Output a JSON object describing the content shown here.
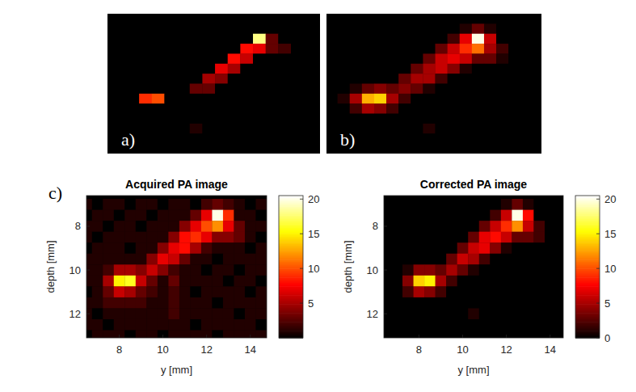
{
  "chart_data": [
    {
      "type": "heatmap",
      "title": "a)",
      "tick_labels": false,
      "color": "hot",
      "xlim": [
        6.5,
        14.9
      ],
      "ylim": [
        6.25,
        13.25
      ],
      "color_range": [
        0,
        20.5
      ],
      "x": [
        6.5,
        7.0,
        7.5,
        8.0,
        8.5,
        9.0,
        9.5,
        10.0,
        10.5,
        11.0,
        11.5,
        12.0,
        12.5,
        13.0,
        13.5,
        14.0,
        14.5
      ],
      "y": [
        7.0,
        7.5,
        8.0,
        8.5,
        9.0,
        9.5,
        10.0,
        10.5,
        11.0,
        11.5,
        12.0,
        12.5,
        13.0
      ],
      "z": [
        [
          0,
          0,
          0,
          0,
          0,
          0,
          0,
          0,
          0,
          0,
          0,
          0,
          0,
          0,
          0,
          0,
          0
        ],
        [
          0,
          0,
          0,
          0,
          0,
          0,
          0,
          0,
          0,
          0,
          0,
          0,
          18,
          3,
          0,
          0,
          0
        ],
        [
          0,
          0,
          0,
          0,
          0,
          0,
          0,
          0,
          0,
          0,
          0,
          8,
          7,
          3,
          2,
          0,
          0
        ],
        [
          0,
          0,
          0,
          0,
          0,
          0,
          0,
          0,
          0,
          0,
          8,
          6,
          0,
          0,
          0,
          0,
          0
        ],
        [
          0,
          0,
          0,
          0,
          0,
          0,
          0,
          0,
          0,
          7,
          5,
          0,
          0,
          0,
          0,
          0,
          0
        ],
        [
          0,
          0,
          0,
          0,
          0,
          0,
          0,
          0,
          5,
          4,
          0,
          0,
          0,
          0,
          0,
          0,
          0
        ],
        [
          0,
          0,
          0,
          0,
          0,
          0,
          0,
          3,
          3,
          0,
          0,
          0,
          0,
          0,
          0,
          0,
          0
        ],
        [
          0,
          0,
          0,
          9,
          10,
          0,
          0,
          0,
          0,
          0,
          0,
          0,
          0,
          0,
          0,
          0,
          0
        ],
        [
          0,
          0,
          0,
          0,
          0,
          0,
          0,
          0,
          0,
          0,
          0,
          0,
          0,
          0,
          0,
          0,
          0
        ],
        [
          0,
          0,
          0,
          0,
          0,
          0,
          0,
          0,
          0,
          0,
          0,
          0,
          0,
          0,
          0,
          0,
          0
        ],
        [
          0,
          0,
          0,
          0,
          0,
          0,
          0,
          1,
          0,
          0,
          0,
          0,
          0,
          0,
          0,
          0,
          0
        ],
        [
          0,
          0,
          0,
          0,
          0,
          0,
          0,
          0,
          0,
          0,
          0,
          0,
          0,
          0,
          0,
          0,
          0
        ],
        [
          0,
          0,
          0,
          0,
          0,
          0,
          0,
          0,
          0,
          0,
          0,
          0,
          0,
          0,
          0,
          0,
          0
        ]
      ]
    },
    {
      "type": "heatmap",
      "title": "b)",
      "tick_labels": false,
      "color": "hot",
      "xlim": [
        6.3,
        15.1
      ],
      "ylim": [
        6.25,
        13.25
      ],
      "color_range": [
        0,
        20.5
      ],
      "x": [
        6.5,
        7.0,
        7.5,
        8.0,
        8.5,
        9.0,
        9.5,
        10.0,
        10.5,
        11.0,
        11.5,
        12.0,
        12.5,
        13.0,
        13.5,
        14.0,
        14.5
      ],
      "y": [
        7.0,
        7.5,
        8.0,
        8.5,
        9.0,
        9.5,
        10.0,
        10.5,
        11.0,
        11.5,
        12.0,
        12.5,
        13.0
      ],
      "z": [
        [
          0,
          0,
          0,
          0,
          0,
          0,
          0,
          0,
          0,
          0,
          0,
          1,
          3,
          1,
          0,
          0,
          0
        ],
        [
          0,
          0,
          0,
          0,
          0,
          0,
          0,
          0,
          0,
          0,
          2,
          7,
          20,
          6,
          0,
          0,
          0
        ],
        [
          0,
          0,
          0,
          0,
          0,
          0,
          0,
          0,
          0,
          3,
          6,
          9,
          11,
          5,
          2,
          0,
          0
        ],
        [
          0,
          0,
          0,
          0,
          0,
          0,
          0,
          0,
          3,
          6,
          7,
          6,
          3,
          3,
          1,
          0,
          0
        ],
        [
          0,
          0,
          0,
          0,
          0,
          0,
          0,
          3,
          5,
          6,
          4,
          1,
          0,
          0,
          0,
          0,
          0
        ],
        [
          0,
          0,
          0,
          0,
          0,
          0,
          3,
          5,
          5,
          2,
          0,
          0,
          0,
          0,
          0,
          0,
          0
        ],
        [
          0,
          0,
          1,
          3,
          4,
          3,
          4,
          3,
          1,
          0,
          0,
          0,
          0,
          0,
          0,
          0,
          0
        ],
        [
          0,
          1,
          5,
          13,
          14,
          5,
          2,
          0,
          0,
          0,
          0,
          0,
          0,
          0,
          0,
          0,
          0
        ],
        [
          0,
          0,
          2,
          5,
          4,
          2,
          0,
          0,
          0,
          0,
          0,
          0,
          0,
          0,
          0,
          0,
          0
        ],
        [
          0,
          0,
          0,
          0,
          0,
          0,
          0,
          0,
          0,
          0,
          0,
          0,
          0,
          0,
          0,
          0,
          0
        ],
        [
          0,
          0,
          0,
          0,
          0,
          0,
          0,
          0,
          1,
          0,
          0,
          0,
          0,
          0,
          0,
          0,
          0
        ],
        [
          0,
          0,
          0,
          0,
          0,
          0,
          0,
          0,
          0,
          0,
          0,
          0,
          0,
          0,
          0,
          0,
          0
        ],
        [
          0,
          0,
          0,
          0,
          0,
          0,
          0,
          0,
          0,
          0,
          0,
          0,
          0,
          0,
          0,
          0,
          0
        ]
      ]
    },
    {
      "type": "heatmap",
      "title": "Acquired PA image",
      "annotations": [
        "c)"
      ],
      "color": "hot",
      "xlabel": "y [mm]",
      "ylabel": "depth [mm]",
      "xlim": [
        6.5,
        14.75
      ],
      "ylim": [
        6.6,
        13.1
      ],
      "xticks": [
        8,
        10,
        12,
        14
      ],
      "yticks": [
        8,
        10,
        12
      ],
      "colorbar": {
        "range": [
          0,
          20.5
        ],
        "ticks": [
          5,
          10,
          15,
          20
        ]
      },
      "x": [
        6.5,
        7.0,
        7.5,
        8.0,
        8.5,
        9.0,
        9.5,
        10.0,
        10.5,
        11.0,
        11.5,
        12.0,
        12.5,
        13.0,
        13.5,
        14.0,
        14.5
      ],
      "y": [
        7.0,
        7.5,
        8.0,
        8.5,
        9.0,
        9.5,
        10.0,
        10.5,
        11.0,
        11.5,
        12.0,
        12.5,
        13.0
      ],
      "z": [
        [
          1,
          0,
          1,
          1,
          0,
          1,
          1,
          0,
          1,
          1,
          0,
          2,
          3,
          2,
          1,
          0,
          1
        ],
        [
          0,
          1,
          1,
          0,
          1,
          1,
          0,
          1,
          1,
          1,
          3,
          7,
          20,
          9,
          1,
          1,
          0
        ],
        [
          1,
          1,
          0,
          1,
          1,
          0,
          1,
          1,
          1,
          4,
          7,
          10,
          12,
          7,
          3,
          1,
          1
        ],
        [
          1,
          0,
          1,
          1,
          1,
          1,
          1,
          1,
          4,
          8,
          9,
          7,
          4,
          4,
          3,
          1,
          0
        ],
        [
          0,
          1,
          1,
          1,
          0,
          1,
          1,
          4,
          7,
          8,
          5,
          2,
          1,
          1,
          1,
          0,
          1
        ],
        [
          1,
          1,
          1,
          1,
          1,
          1,
          4,
          7,
          6,
          3,
          1,
          1,
          0,
          1,
          1,
          1,
          1
        ],
        [
          1,
          1,
          2,
          5,
          5,
          4,
          6,
          4,
          2,
          1,
          1,
          0,
          1,
          1,
          0,
          1,
          1
        ],
        [
          1,
          1,
          5,
          15,
          16,
          6,
          3,
          1,
          3,
          1,
          1,
          1,
          1,
          0,
          1,
          1,
          0
        ],
        [
          0,
          1,
          3,
          6,
          5,
          3,
          2,
          1,
          2,
          1,
          0,
          1,
          1,
          1,
          1,
          0,
          1
        ],
        [
          1,
          1,
          2,
          2,
          2,
          2,
          1,
          1,
          2,
          1,
          1,
          1,
          0,
          1,
          1,
          1,
          1
        ],
        [
          1,
          0,
          1,
          1,
          1,
          1,
          1,
          1,
          2,
          1,
          1,
          1,
          1,
          1,
          0,
          1,
          1
        ],
        [
          1,
          1,
          0,
          1,
          1,
          1,
          1,
          1,
          1,
          1,
          0,
          1,
          1,
          1,
          1,
          1,
          0
        ],
        [
          0,
          1,
          1,
          1,
          0,
          1,
          1,
          0,
          1,
          1,
          1,
          1,
          0,
          1,
          1,
          1,
          1
        ]
      ]
    },
    {
      "type": "heatmap",
      "title": "Corrected PA image",
      "color": "hot",
      "xlabel": "y [mm]",
      "ylabel": "depth [mm]",
      "xlim": [
        6.4,
        14.6
      ],
      "ylim": [
        6.6,
        13.1
      ],
      "xticks": [
        8,
        10,
        12,
        14
      ],
      "yticks": [
        8,
        10,
        12
      ],
      "colorbar": {
        "range": [
          0,
          20.5
        ],
        "ticks": [
          0,
          5,
          10,
          15,
          20
        ]
      },
      "x": [
        6.5,
        7.0,
        7.5,
        8.0,
        8.5,
        9.0,
        9.5,
        10.0,
        10.5,
        11.0,
        11.5,
        12.0,
        12.5,
        13.0,
        13.5,
        14.0,
        14.5
      ],
      "y": [
        7.0,
        7.5,
        8.0,
        8.5,
        9.0,
        9.5,
        10.0,
        10.5,
        11.0,
        11.5,
        12.0,
        12.5,
        13.0
      ],
      "z": [
        [
          0,
          0,
          0,
          0,
          0,
          0,
          0,
          0,
          0,
          0,
          0,
          1,
          3,
          1,
          0,
          0,
          0
        ],
        [
          0,
          0,
          0,
          0,
          0,
          0,
          0,
          0,
          0,
          0,
          2,
          6,
          20,
          8,
          0,
          0,
          0
        ],
        [
          0,
          0,
          0,
          0,
          0,
          0,
          0,
          0,
          0,
          3,
          6,
          9,
          12,
          6,
          2,
          0,
          0
        ],
        [
          0,
          0,
          0,
          0,
          0,
          0,
          0,
          0,
          3,
          7,
          8,
          6,
          3,
          3,
          2,
          0,
          0
        ],
        [
          0,
          0,
          0,
          0,
          0,
          0,
          0,
          3,
          6,
          7,
          4,
          1,
          0,
          0,
          0,
          0,
          0
        ],
        [
          0,
          0,
          0,
          0,
          0,
          0,
          3,
          6,
          5,
          2,
          0,
          0,
          0,
          0,
          0,
          0,
          0
        ],
        [
          0,
          0,
          1,
          4,
          4,
          3,
          5,
          3,
          1,
          0,
          0,
          0,
          0,
          0,
          0,
          0,
          0
        ],
        [
          0,
          0,
          4,
          14,
          15,
          5,
          2,
          0,
          0,
          0,
          0,
          0,
          0,
          0,
          0,
          0,
          0
        ],
        [
          0,
          0,
          2,
          5,
          4,
          2,
          0,
          0,
          0,
          0,
          0,
          0,
          0,
          0,
          0,
          0,
          0
        ],
        [
          0,
          0,
          0,
          0,
          0,
          0,
          0,
          0,
          0,
          0,
          0,
          0,
          0,
          0,
          0,
          0,
          0
        ],
        [
          0,
          0,
          0,
          0,
          0,
          0,
          0,
          0,
          1,
          0,
          0,
          0,
          0,
          0,
          0,
          0,
          0
        ],
        [
          0,
          0,
          0,
          0,
          0,
          0,
          0,
          0,
          0,
          0,
          0,
          0,
          0,
          0,
          0,
          0,
          0
        ],
        [
          0,
          0,
          0,
          0,
          0,
          0,
          0,
          0,
          0,
          0,
          0,
          0,
          0,
          0,
          0,
          0,
          0
        ]
      ]
    }
  ]
}
